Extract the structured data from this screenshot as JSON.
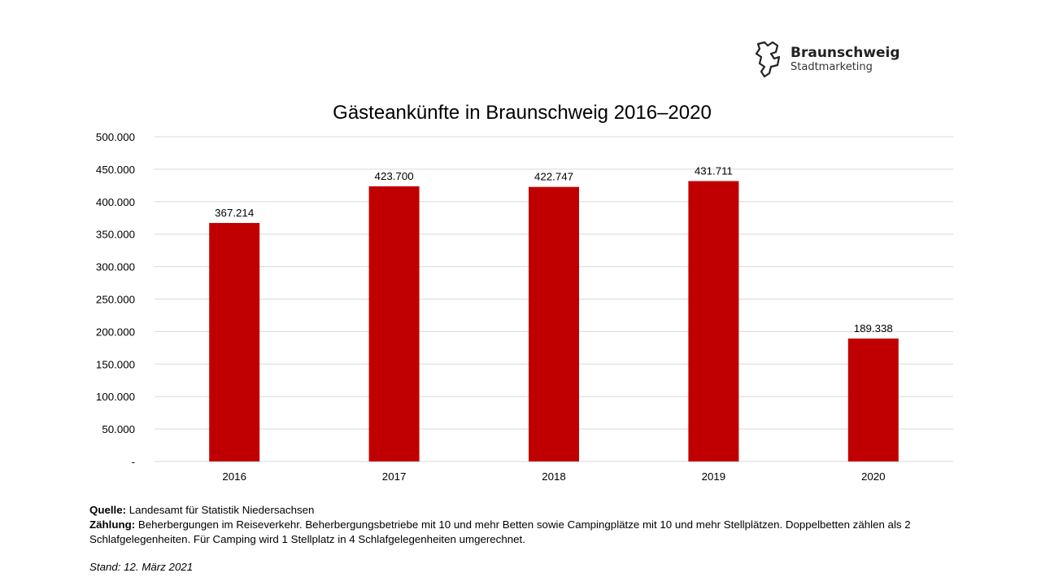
{
  "logo": {
    "title": "Braunschweig",
    "subtitle": "Stadtmarketing"
  },
  "chart_data": {
    "type": "bar",
    "title": "Gästeankünfte in Braunschweig 2016–2020",
    "categories": [
      "2016",
      "2017",
      "2018",
      "2019",
      "2020"
    ],
    "values": [
      367214,
      423700,
      422747,
      431711,
      189338
    ],
    "data_labels": [
      "367.214",
      "423.700",
      "422.747",
      "431.711",
      "189.338"
    ],
    "ylim": [
      0,
      500000
    ],
    "yticks": [
      0,
      50000,
      100000,
      150000,
      200000,
      250000,
      300000,
      350000,
      400000,
      450000,
      500000
    ],
    "ytick_labels": [
      "-",
      "50.000",
      "100.000",
      "150.000",
      "200.000",
      "250.000",
      "300.000",
      "350.000",
      "400.000",
      "450.000",
      "500.000"
    ],
    "grid": true,
    "bar_color": "#C00000",
    "xlabel": "",
    "ylabel": ""
  },
  "footer": {
    "source_label": "Quelle:",
    "source_text": " Landesamt für Statistik Niedersachsen",
    "count_label": "Zählung:",
    "count_text": " Beherbergungen im Reiseverkehr. Beherbergungsbetriebe mit 10 und mehr Betten sowie Campingplätze mit 10 und mehr Stellplätzen. Doppelbetten zählen als 2 Schlafgelegenheiten. Für Camping wird 1 Stellplatz in 4 Schlafgelegenheiten umgerechnet.",
    "stand": "Stand: 12. März 2021"
  }
}
